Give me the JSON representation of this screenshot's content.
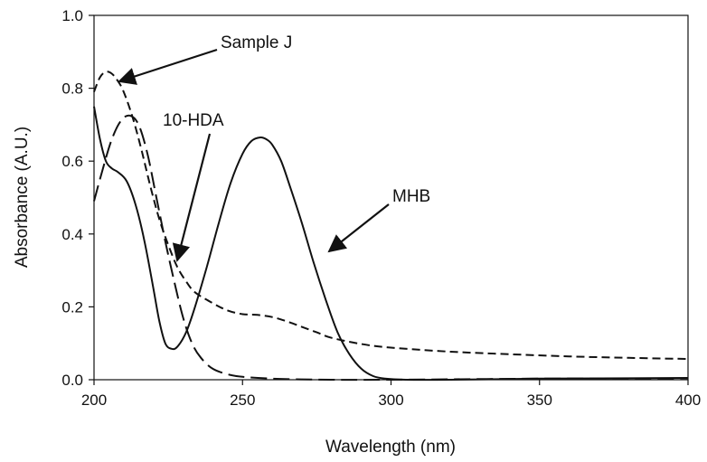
{
  "chart_data": {
    "type": "line",
    "xlabel": "Wavelength (nm)",
    "ylabel": "Absorbance (A.U.)",
    "xlim": [
      200,
      400
    ],
    "ylim": [
      0,
      1.0
    ],
    "x_ticks": [
      "200",
      "250",
      "300",
      "350",
      "400"
    ],
    "y_ticks": [
      "0.0",
      "0.2",
      "0.4",
      "0.6",
      "0.8",
      "1.0"
    ],
    "grid": false,
    "series": [
      {
        "name": "Sample J",
        "line_style": "short-dash",
        "x": [
          200,
          202,
          204,
          206,
          208,
          210,
          213,
          216,
          219,
          222,
          225,
          228,
          231,
          234,
          240,
          245,
          250,
          255,
          260,
          265,
          270,
          275,
          280,
          290,
          300,
          320,
          340,
          360,
          380,
          400
        ],
        "y": [
          0.79,
          0.83,
          0.845,
          0.84,
          0.82,
          0.79,
          0.72,
          0.63,
          0.53,
          0.44,
          0.37,
          0.31,
          0.27,
          0.24,
          0.21,
          0.19,
          0.18,
          0.178,
          0.172,
          0.16,
          0.145,
          0.13,
          0.115,
          0.098,
          0.088,
          0.077,
          0.07,
          0.064,
          0.06,
          0.057
        ]
      },
      {
        "name": "10-HDA",
        "line_style": "long-dash",
        "x": [
          200,
          203,
          206,
          209,
          212,
          215,
          218,
          221,
          224,
          227,
          230,
          233,
          236,
          240,
          245,
          250,
          260,
          270,
          280,
          300,
          350,
          400
        ],
        "y": [
          0.49,
          0.58,
          0.66,
          0.71,
          0.725,
          0.7,
          0.62,
          0.5,
          0.38,
          0.27,
          0.17,
          0.1,
          0.06,
          0.03,
          0.015,
          0.008,
          0.003,
          0.001,
          0.0,
          0.0,
          0.003,
          0.004
        ]
      },
      {
        "name": "MHB",
        "line_style": "solid",
        "x": [
          200,
          202,
          204,
          206,
          208,
          211,
          214,
          217,
          220,
          222,
          224,
          226,
          228,
          231,
          234,
          238,
          242,
          246,
          250,
          253,
          256,
          258,
          260,
          263,
          266,
          270,
          274,
          278,
          282,
          286,
          290,
          294,
          298,
          305,
          320,
          350,
          380,
          400
        ],
        "y": [
          0.75,
          0.66,
          0.6,
          0.58,
          0.57,
          0.545,
          0.48,
          0.38,
          0.25,
          0.16,
          0.1,
          0.085,
          0.09,
          0.13,
          0.2,
          0.31,
          0.43,
          0.54,
          0.62,
          0.655,
          0.665,
          0.66,
          0.645,
          0.6,
          0.53,
          0.43,
          0.32,
          0.22,
          0.13,
          0.07,
          0.03,
          0.01,
          0.003,
          0.0,
          0.0,
          0.003,
          0.004,
          0.005
        ]
      }
    ],
    "annotations": [
      {
        "label": "Sample J"
      },
      {
        "label": "10-HDA"
      },
      {
        "label": "MHB"
      }
    ]
  }
}
